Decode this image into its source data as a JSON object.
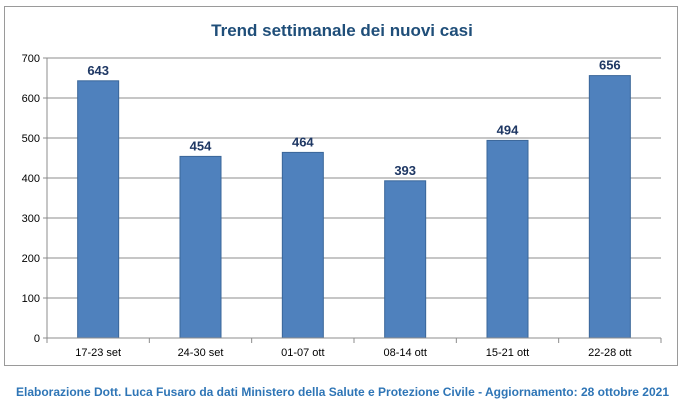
{
  "chart_data": {
    "type": "bar",
    "title": "Trend settimanale dei nuovi casi",
    "categories": [
      "17-23 set",
      "24-30 set",
      "01-07 ott",
      "08-14 ott",
      "15-21 ott",
      "22-28 ott"
    ],
    "values": [
      643,
      454,
      464,
      393,
      494,
      656
    ],
    "data_labels": [
      "643",
      "454",
      "464",
      "393",
      "494",
      "656"
    ],
    "y_ticks": [
      "0",
      "100",
      "200",
      "300",
      "400",
      "500",
      "600",
      "700"
    ],
    "ylim": [
      0,
      700
    ],
    "grid": true,
    "legend": "none",
    "bar_color": "#4f81bd",
    "bar_border_color": "#3a6699",
    "label_color": "#1f3864",
    "title_color": "#1f4e79"
  },
  "footer": {
    "text": "Elaborazione Dott. Luca Fusaro da dati Ministero della Salute e Protezione Civile - Aggiornamento: 28 ottobre 2021"
  }
}
